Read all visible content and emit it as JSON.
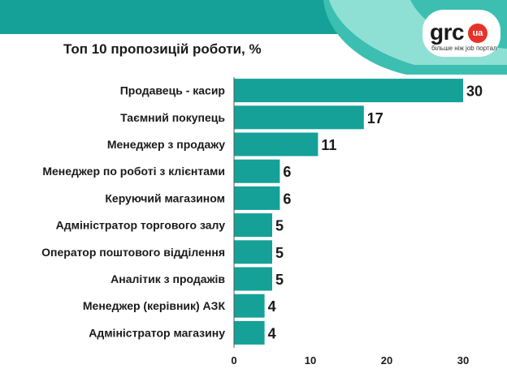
{
  "title": "Топ 10 пропозицій роботи, %",
  "logo": {
    "word": "grc",
    "badge": "ua",
    "tagline": "більше ніж job портал"
  },
  "colors": {
    "bar": "#15a197",
    "band": "#15a197",
    "band_shape": "#3cbfb0",
    "band_shape_light": "#8fe0d4",
    "text": "#1a1a1a",
    "axis": "#555555",
    "logo_red": "#e63329"
  },
  "chart_data": {
    "type": "bar",
    "orientation": "horizontal",
    "title": "Топ 10 пропозицій роботи, %",
    "categories": [
      "Продавець - касир",
      "Таємний покупець",
      "Менеджер з продажу",
      "Менеджер по роботі з клієнтами",
      "Керуючий магазином",
      "Адміністратор торгового залу",
      "Оператор поштового відділення",
      "Аналітик з продажів",
      "Менеджер (керівник) АЗК",
      "Адміністратор магазину"
    ],
    "values": [
      30,
      17,
      11,
      6,
      6,
      5,
      5,
      5,
      4,
      4
    ],
    "data_labels": [
      "30",
      "17",
      "11",
      "6",
      "6",
      "5",
      "5",
      "5",
      "4",
      "4"
    ],
    "xlim": [
      0,
      30
    ],
    "xticks": [
      0,
      10,
      20,
      30
    ],
    "xtick_labels": [
      "0",
      "10",
      "20",
      "30"
    ],
    "grid": false,
    "legend": "none"
  }
}
